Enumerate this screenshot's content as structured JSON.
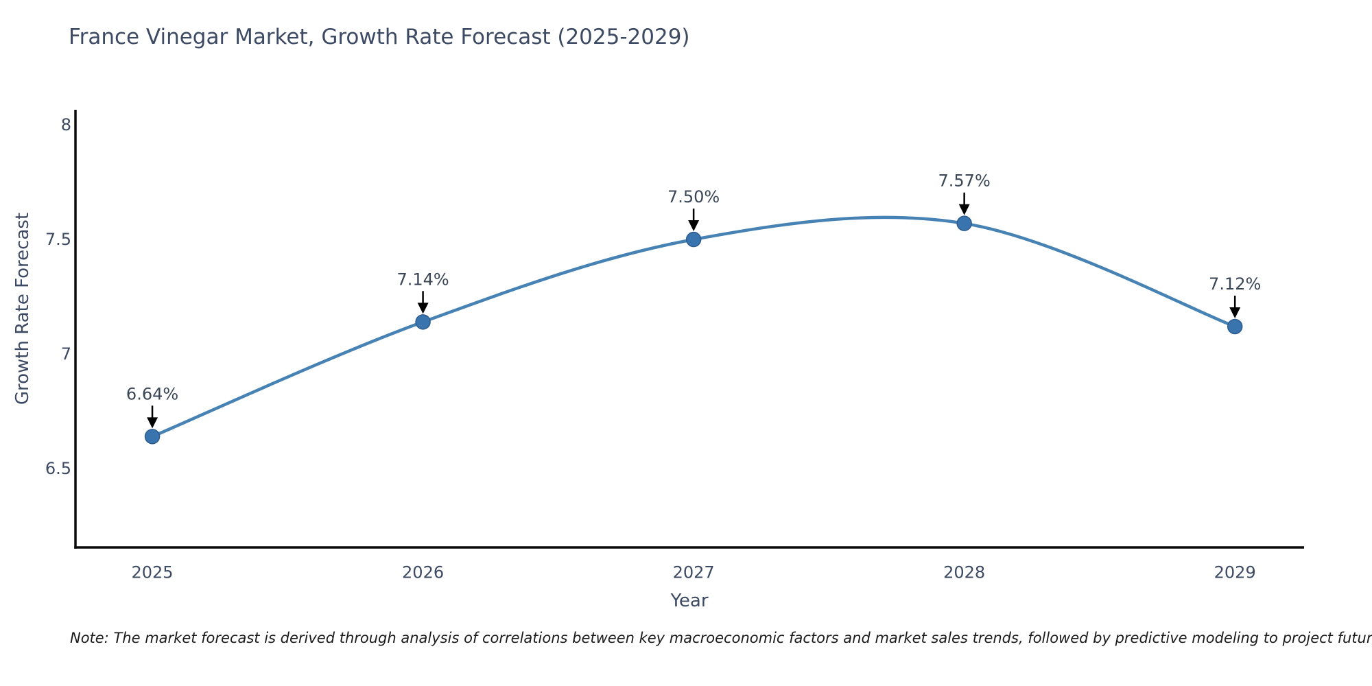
{
  "title": "France Vinegar Market, Growth Rate Forecast (2025-2029)",
  "note": "Note: The market forecast is derived through analysis of correlations between key macroeconomic factors and market sales trends, followed by predictive modeling to project future sales",
  "chart_data": {
    "type": "line",
    "title": "France Vinegar Market, Growth Rate Forecast (2025-2029)",
    "xlabel": "Year",
    "ylabel": "Growth Rate Forecast",
    "x": [
      2025,
      2026,
      2027,
      2028,
      2029
    ],
    "values": [
      6.64,
      7.14,
      7.5,
      7.57,
      7.12
    ],
    "point_labels": [
      "6.64%",
      "7.14%",
      "7.50%",
      "7.57%",
      "7.12%"
    ],
    "xtick_labels": [
      "2025",
      "2026",
      "2027",
      "2028",
      "2029"
    ],
    "yticks": [
      6.5,
      7.0,
      7.5,
      8.0
    ],
    "ytick_labels": [
      "6.5",
      "7",
      "7.5",
      "8"
    ],
    "xlim": [
      2024.716,
      2029.253
    ],
    "ylim": [
      6.156,
      8.066
    ],
    "grid": false,
    "legend": null,
    "smooth": true,
    "annotations": "each point labeled with value and black arrow pointing down to marker"
  },
  "colors": {
    "line": "#4682b4",
    "marker_fill": "#3a74ae",
    "marker_edge": "#2d5c8f",
    "spine": "#0a0a0a",
    "text": "#3d4a63",
    "annotation_text": "#3a4656",
    "arrow": "#000000",
    "background": "#ffffff"
  }
}
